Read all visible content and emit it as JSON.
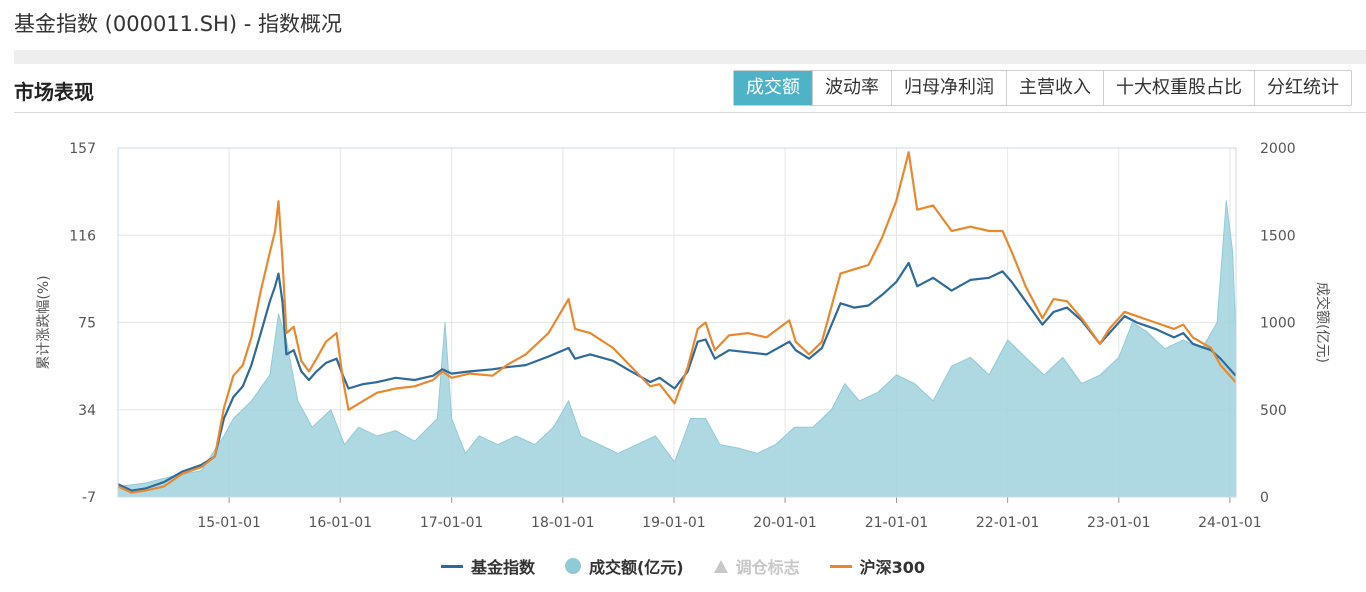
{
  "page": {
    "title": "基金指数 (000011.SH) - 指数概况"
  },
  "section": {
    "title": "市场表现"
  },
  "tabs": [
    {
      "label": "成交额",
      "active": true
    },
    {
      "label": "波动率",
      "active": false
    },
    {
      "label": "归母净利润",
      "active": false
    },
    {
      "label": "主营收入",
      "active": false
    },
    {
      "label": "十大权重股占比",
      "active": false
    },
    {
      "label": "分红统计",
      "active": false
    }
  ],
  "colors": {
    "index": "#2e6a9a",
    "hs300": "#e8892f",
    "volume": "#a6d5df",
    "volume_stroke": "#86c6d4",
    "grid": "#e6e6e6",
    "accent": "#4fb3c8"
  },
  "legend": [
    {
      "label": "基金指数",
      "symbol": "line",
      "color": "#2e6a9a",
      "enabled": true
    },
    {
      "label": "成交额(亿元)",
      "symbol": "circle",
      "color": "#8fcad6",
      "enabled": true
    },
    {
      "label": "调仓标志",
      "symbol": "triangle",
      "color": "#c8c8c8",
      "enabled": false
    },
    {
      "label": "沪深300",
      "symbol": "line",
      "color": "#e8892f",
      "enabled": true
    }
  ],
  "chart_data": {
    "type": "line",
    "xlabel": "",
    "ylabel": "累计涨跌幅(%)",
    "y2label": "成交额(亿元)",
    "ylim": [
      -7,
      157
    ],
    "y2lim": [
      0,
      2000
    ],
    "yticks": [
      "157",
      "116",
      "75",
      "34",
      "-7"
    ],
    "y2ticks": [
      "2000",
      "1500",
      "1000",
      "500",
      "0"
    ],
    "xticks": [
      "15-01-01",
      "16-01-01",
      "17-01-01",
      "18-01-01",
      "19-01-01",
      "20-01-01",
      "21-01-01",
      "22-01-01",
      "23-01-01",
      "24-01-01"
    ],
    "xrange": [
      "2014-01-01",
      "2024-01-21"
    ],
    "grid": true,
    "legend_position": "bottom",
    "series": [
      {
        "name": "基金指数",
        "axis": "left",
        "points": [
          [
            "2014-01-01",
            -1
          ],
          [
            "2014-02-15",
            -4
          ],
          [
            "2014-04-01",
            -3
          ],
          [
            "2014-06-01",
            0
          ],
          [
            "2014-08-01",
            5
          ],
          [
            "2014-10-01",
            8
          ],
          [
            "2014-11-15",
            12
          ],
          [
            "2014-12-15",
            30
          ],
          [
            "2015-01-15",
            40
          ],
          [
            "2015-02-15",
            45
          ],
          [
            "2015-03-15",
            55
          ],
          [
            "2015-04-15",
            70
          ],
          [
            "2015-05-15",
            85
          ],
          [
            "2015-06-01",
            92
          ],
          [
            "2015-06-12",
            98
          ],
          [
            "2015-06-25",
            85
          ],
          [
            "2015-07-08",
            60
          ],
          [
            "2015-08-01",
            62
          ],
          [
            "2015-08-26",
            52
          ],
          [
            "2015-09-20",
            48
          ],
          [
            "2015-10-15",
            52
          ],
          [
            "2015-11-15",
            56
          ],
          [
            "2015-12-20",
            58
          ],
          [
            "2016-01-10",
            50
          ],
          [
            "2016-01-28",
            44
          ],
          [
            "2016-03-15",
            46
          ],
          [
            "2016-05-01",
            47
          ],
          [
            "2016-07-01",
            49
          ],
          [
            "2016-09-01",
            48
          ],
          [
            "2016-11-01",
            50
          ],
          [
            "2016-12-01",
            53
          ],
          [
            "2017-01-01",
            51
          ],
          [
            "2017-03-01",
            52
          ],
          [
            "2017-05-15",
            53
          ],
          [
            "2017-07-01",
            54
          ],
          [
            "2017-09-01",
            55
          ],
          [
            "2017-11-15",
            59
          ],
          [
            "2018-01-20",
            63
          ],
          [
            "2018-02-10",
            58
          ],
          [
            "2018-04-01",
            60
          ],
          [
            "2018-06-15",
            57
          ],
          [
            "2018-08-01",
            53
          ],
          [
            "2018-10-15",
            47
          ],
          [
            "2018-11-15",
            49
          ],
          [
            "2019-01-03",
            44
          ],
          [
            "2019-02-15",
            52
          ],
          [
            "2019-03-20",
            66
          ],
          [
            "2019-04-15",
            67
          ],
          [
            "2019-05-15",
            58
          ],
          [
            "2019-07-01",
            62
          ],
          [
            "2019-09-01",
            61
          ],
          [
            "2019-11-01",
            60
          ],
          [
            "2020-01-15",
            66
          ],
          [
            "2020-02-05",
            62
          ],
          [
            "2020-03-20",
            58
          ],
          [
            "2020-05-01",
            63
          ],
          [
            "2020-07-01",
            84
          ],
          [
            "2020-08-15",
            82
          ],
          [
            "2020-10-01",
            83
          ],
          [
            "2020-11-15",
            88
          ],
          [
            "2020-12-31",
            94
          ],
          [
            "2021-02-10",
            103
          ],
          [
            "2021-03-10",
            92
          ],
          [
            "2021-05-01",
            96
          ],
          [
            "2021-07-01",
            90
          ],
          [
            "2021-09-01",
            95
          ],
          [
            "2021-11-01",
            96
          ],
          [
            "2021-12-15",
            99
          ],
          [
            "2022-01-15",
            94
          ],
          [
            "2022-03-01",
            85
          ],
          [
            "2022-04-25",
            74
          ],
          [
            "2022-06-01",
            80
          ],
          [
            "2022-07-15",
            82
          ],
          [
            "2022-09-01",
            76
          ],
          [
            "2022-10-31",
            65
          ],
          [
            "2022-12-01",
            70
          ],
          [
            "2023-01-20",
            78
          ],
          [
            "2023-03-01",
            75
          ],
          [
            "2023-05-01",
            72
          ],
          [
            "2023-07-01",
            68
          ],
          [
            "2023-08-01",
            70
          ],
          [
            "2023-09-01",
            65
          ],
          [
            "2023-10-31",
            62
          ],
          [
            "2023-12-01",
            58
          ],
          [
            "2024-01-20",
            50
          ]
        ]
      },
      {
        "name": "沪深300",
        "axis": "left",
        "points": [
          [
            "2014-01-01",
            -2
          ],
          [
            "2014-02-15",
            -5
          ],
          [
            "2014-04-01",
            -4
          ],
          [
            "2014-06-01",
            -2
          ],
          [
            "2014-08-01",
            4
          ],
          [
            "2014-10-01",
            7
          ],
          [
            "2014-11-15",
            12
          ],
          [
            "2014-12-15",
            35
          ],
          [
            "2015-01-15",
            50
          ],
          [
            "2015-02-15",
            55
          ],
          [
            "2015-03-15",
            68
          ],
          [
            "2015-04-15",
            90
          ],
          [
            "2015-05-15",
            108
          ],
          [
            "2015-06-01",
            118
          ],
          [
            "2015-06-12",
            132
          ],
          [
            "2015-06-25",
            105
          ],
          [
            "2015-07-08",
            70
          ],
          [
            "2015-08-01",
            73
          ],
          [
            "2015-08-26",
            57
          ],
          [
            "2015-09-20",
            52
          ],
          [
            "2015-10-15",
            58
          ],
          [
            "2015-11-15",
            66
          ],
          [
            "2015-12-20",
            70
          ],
          [
            "2016-01-10",
            48
          ],
          [
            "2016-01-28",
            34
          ],
          [
            "2016-03-15",
            38
          ],
          [
            "2016-05-01",
            42
          ],
          [
            "2016-07-01",
            44
          ],
          [
            "2016-09-01",
            45
          ],
          [
            "2016-11-01",
            48
          ],
          [
            "2016-12-01",
            52
          ],
          [
            "2017-01-01",
            49
          ],
          [
            "2017-03-01",
            51
          ],
          [
            "2017-05-15",
            50
          ],
          [
            "2017-07-01",
            55
          ],
          [
            "2017-09-01",
            60
          ],
          [
            "2017-11-15",
            70
          ],
          [
            "2018-01-20",
            86
          ],
          [
            "2018-02-10",
            72
          ],
          [
            "2018-04-01",
            70
          ],
          [
            "2018-06-15",
            63
          ],
          [
            "2018-08-01",
            56
          ],
          [
            "2018-10-15",
            45
          ],
          [
            "2018-11-15",
            46
          ],
          [
            "2019-01-03",
            37
          ],
          [
            "2019-02-15",
            54
          ],
          [
            "2019-03-20",
            72
          ],
          [
            "2019-04-15",
            75
          ],
          [
            "2019-05-15",
            62
          ],
          [
            "2019-07-01",
            69
          ],
          [
            "2019-09-01",
            70
          ],
          [
            "2019-11-01",
            68
          ],
          [
            "2020-01-15",
            76
          ],
          [
            "2020-02-05",
            66
          ],
          [
            "2020-03-20",
            60
          ],
          [
            "2020-05-01",
            66
          ],
          [
            "2020-07-01",
            98
          ],
          [
            "2020-08-15",
            100
          ],
          [
            "2020-10-01",
            102
          ],
          [
            "2020-11-15",
            115
          ],
          [
            "2020-12-31",
            132
          ],
          [
            "2021-02-10",
            155
          ],
          [
            "2021-03-10",
            128
          ],
          [
            "2021-05-01",
            130
          ],
          [
            "2021-07-01",
            118
          ],
          [
            "2021-09-01",
            120
          ],
          [
            "2021-11-01",
            118
          ],
          [
            "2021-12-15",
            118
          ],
          [
            "2022-01-15",
            108
          ],
          [
            "2022-03-01",
            92
          ],
          [
            "2022-04-25",
            77
          ],
          [
            "2022-06-01",
            86
          ],
          [
            "2022-07-15",
            85
          ],
          [
            "2022-09-01",
            77
          ],
          [
            "2022-10-31",
            65
          ],
          [
            "2022-12-01",
            72
          ],
          [
            "2023-01-20",
            80
          ],
          [
            "2023-03-01",
            78
          ],
          [
            "2023-05-01",
            75
          ],
          [
            "2023-07-01",
            72
          ],
          [
            "2023-08-01",
            74
          ],
          [
            "2023-09-01",
            68
          ],
          [
            "2023-10-31",
            63
          ],
          [
            "2023-12-01",
            55
          ],
          [
            "2024-01-20",
            47
          ]
        ]
      },
      {
        "name": "成交额(亿元)",
        "axis": "right",
        "type": "area",
        "points": [
          [
            "2014-01-01",
            60
          ],
          [
            "2014-04-01",
            80
          ],
          [
            "2014-07-01",
            120
          ],
          [
            "2014-10-01",
            150
          ],
          [
            "2014-12-15",
            350
          ],
          [
            "2015-01-15",
            450
          ],
          [
            "2015-03-15",
            550
          ],
          [
            "2015-05-15",
            700
          ],
          [
            "2015-06-12",
            1050
          ],
          [
            "2015-07-08",
            900
          ],
          [
            "2015-08-15",
            550
          ],
          [
            "2015-10-01",
            400
          ],
          [
            "2015-12-01",
            500
          ],
          [
            "2016-01-15",
            300
          ],
          [
            "2016-03-01",
            400
          ],
          [
            "2016-05-01",
            350
          ],
          [
            "2016-07-01",
            380
          ],
          [
            "2016-09-01",
            320
          ],
          [
            "2016-11-15",
            450
          ],
          [
            "2016-12-10",
            1000
          ],
          [
            "2017-01-01",
            450
          ],
          [
            "2017-02-15",
            250
          ],
          [
            "2017-04-01",
            350
          ],
          [
            "2017-06-01",
            300
          ],
          [
            "2017-08-01",
            350
          ],
          [
            "2017-10-01",
            300
          ],
          [
            "2017-12-01",
            400
          ],
          [
            "2018-01-20",
            550
          ],
          [
            "2018-03-01",
            350
          ],
          [
            "2018-05-01",
            300
          ],
          [
            "2018-07-01",
            250
          ],
          [
            "2018-09-01",
            300
          ],
          [
            "2018-11-01",
            350
          ],
          [
            "2019-01-03",
            200
          ],
          [
            "2019-02-25",
            450
          ],
          [
            "2019-04-15",
            450
          ],
          [
            "2019-06-01",
            300
          ],
          [
            "2019-08-01",
            280
          ],
          [
            "2019-10-01",
            250
          ],
          [
            "2019-12-01",
            300
          ],
          [
            "2020-02-01",
            400
          ],
          [
            "2020-04-01",
            400
          ],
          [
            "2020-06-01",
            500
          ],
          [
            "2020-07-15",
            650
          ],
          [
            "2020-09-01",
            550
          ],
          [
            "2020-11-01",
            600
          ],
          [
            "2021-01-01",
            700
          ],
          [
            "2021-03-01",
            650
          ],
          [
            "2021-05-01",
            550
          ],
          [
            "2021-07-01",
            750
          ],
          [
            "2021-09-01",
            800
          ],
          [
            "2021-11-01",
            700
          ],
          [
            "2022-01-01",
            900
          ],
          [
            "2022-03-01",
            800
          ],
          [
            "2022-05-01",
            700
          ],
          [
            "2022-07-01",
            800
          ],
          [
            "2022-09-01",
            650
          ],
          [
            "2022-11-01",
            700
          ],
          [
            "2023-01-01",
            800
          ],
          [
            "2023-02-15",
            1000
          ],
          [
            "2023-04-01",
            950
          ],
          [
            "2023-06-01",
            850
          ],
          [
            "2023-08-01",
            900
          ],
          [
            "2023-10-01",
            850
          ],
          [
            "2023-11-20",
            1000
          ],
          [
            "2023-12-20",
            1700
          ],
          [
            "2024-01-10",
            1400
          ],
          [
            "2024-01-20",
            950
          ]
        ]
      }
    ]
  }
}
